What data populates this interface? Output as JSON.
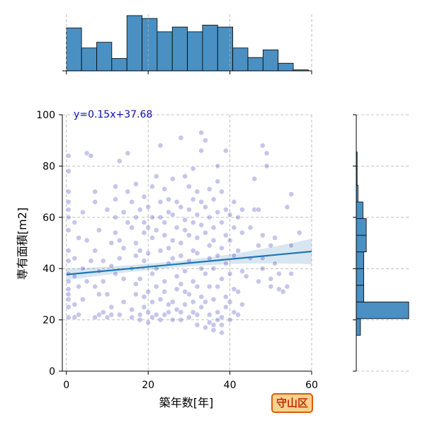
{
  "chart_data": {
    "type": "scatter",
    "title": "",
    "xlabel": "築年数[年]",
    "ylabel": "専有面積[m2]",
    "xlim": [
      -1,
      60
    ],
    "ylim": [
      0,
      100
    ],
    "xticks": [
      0,
      20,
      40,
      60
    ],
    "yticks": [
      0,
      20,
      40,
      60,
      80,
      100
    ],
    "grid": "dashed",
    "fit": {
      "slope": 0.15,
      "intercept": 37.68,
      "label": "y=0.15x+37.68",
      "line_color": "#1f77b4"
    },
    "point_color": "#1a1ab0",
    "marginal_x_hist": {
      "bin_edges": [
        0,
        3.7,
        7.4,
        11.1,
        14.8,
        18.5,
        22.2,
        25.9,
        29.6,
        33.3,
        37,
        40.7,
        44.4,
        48.1,
        51.8,
        55.5,
        59.2
      ],
      "counts": [
        45,
        24,
        30,
        13,
        58,
        55,
        41,
        46,
        41,
        48,
        46,
        24,
        14,
        22,
        8,
        1
      ]
    },
    "marginal_y_hist": {
      "bin_edges": [
        14,
        20.5,
        27,
        33.5,
        40,
        46.5,
        53,
        59.5,
        66,
        72.5,
        79,
        85.5
      ],
      "counts": [
        5,
        63,
        9,
        9,
        9,
        12,
        12,
        8,
        2,
        1,
        1
      ]
    },
    "points": [
      [
        0.5,
        21
      ],
      [
        0.5,
        25
      ],
      [
        0.5,
        28
      ],
      [
        0.5,
        30
      ],
      [
        0.5,
        32
      ],
      [
        0.5,
        35
      ],
      [
        0.5,
        38
      ],
      [
        0.5,
        43
      ],
      [
        0.5,
        47
      ],
      [
        0.5,
        55
      ],
      [
        0.5,
        60
      ],
      [
        0.5,
        63
      ],
      [
        0.5,
        66
      ],
      [
        0.5,
        70
      ],
      [
        0.5,
        78
      ],
      [
        0.5,
        84
      ],
      [
        2,
        21
      ],
      [
        3,
        22
      ],
      [
        2,
        26
      ],
      [
        4,
        28
      ],
      [
        3,
        33
      ],
      [
        2,
        37
      ],
      [
        4,
        40
      ],
      [
        2,
        44
      ],
      [
        3,
        52
      ],
      [
        2,
        58
      ],
      [
        4,
        62
      ],
      [
        5,
        85
      ],
      [
        6,
        84
      ],
      [
        5,
        35
      ],
      [
        6,
        43
      ],
      [
        5,
        51
      ],
      [
        7,
        21
      ],
      [
        8,
        22
      ],
      [
        8,
        30
      ],
      [
        7,
        33
      ],
      [
        8,
        39
      ],
      [
        7,
        47
      ],
      [
        8,
        55
      ],
      [
        7,
        66
      ],
      [
        7,
        70
      ],
      [
        9,
        23
      ],
      [
        9,
        35
      ],
      [
        9,
        43
      ],
      [
        10,
        21
      ],
      [
        11,
        22
      ],
      [
        11,
        25
      ],
      [
        10,
        30
      ],
      [
        11,
        41
      ],
      [
        12,
        38
      ],
      [
        11,
        50
      ],
      [
        12,
        54
      ],
      [
        12,
        60
      ],
      [
        12,
        67
      ],
      [
        12,
        72
      ],
      [
        10,
        63
      ],
      [
        13,
        22
      ],
      [
        14,
        27
      ],
      [
        14,
        36
      ],
      [
        13,
        44
      ],
      [
        14,
        48
      ],
      [
        15,
        58
      ],
      [
        14,
        62
      ],
      [
        13,
        82
      ],
      [
        15,
        85
      ],
      [
        15,
        70
      ],
      [
        13,
        51
      ],
      [
        16,
        21
      ],
      [
        16,
        24
      ],
      [
        17,
        30
      ],
      [
        17,
        34
      ],
      [
        16,
        40
      ],
      [
        17,
        45
      ],
      [
        17,
        50
      ],
      [
        16,
        56
      ],
      [
        17,
        60
      ],
      [
        16,
        66
      ],
      [
        17,
        73
      ],
      [
        18,
        20
      ],
      [
        18,
        22
      ],
      [
        19,
        25
      ],
      [
        19,
        29
      ],
      [
        18,
        36
      ],
      [
        19,
        43
      ],
      [
        18,
        47
      ],
      [
        19,
        54
      ],
      [
        19,
        58
      ],
      [
        18,
        63
      ],
      [
        19,
        68
      ],
      [
        20,
        19
      ],
      [
        20,
        23
      ],
      [
        21,
        21
      ],
      [
        21,
        27
      ],
      [
        20,
        31
      ],
      [
        21,
        38
      ],
      [
        20,
        46
      ],
      [
        21,
        52
      ],
      [
        20,
        56
      ],
      [
        21,
        60
      ],
      [
        20,
        64
      ],
      [
        21,
        72
      ],
      [
        22,
        22
      ],
      [
        23,
        20
      ],
      [
        23,
        28
      ],
      [
        22,
        33
      ],
      [
        22,
        40
      ],
      [
        23,
        47
      ],
      [
        22,
        55
      ],
      [
        23,
        60
      ],
      [
        23,
        66
      ],
      [
        22,
        76
      ],
      [
        23,
        88
      ],
      [
        24,
        22
      ],
      [
        25,
        23
      ],
      [
        25,
        26
      ],
      [
        24,
        31
      ],
      [
        24,
        35
      ],
      [
        25,
        42
      ],
      [
        25,
        48
      ],
      [
        24,
        53
      ],
      [
        24,
        58
      ],
      [
        25,
        62
      ],
      [
        25,
        67
      ],
      [
        24,
        71
      ],
      [
        26,
        20
      ],
      [
        27,
        24
      ],
      [
        26,
        27
      ],
      [
        27,
        32
      ],
      [
        27,
        37
      ],
      [
        26,
        44
      ],
      [
        26,
        51
      ],
      [
        27,
        56
      ],
      [
        26,
        61
      ],
      [
        27,
        66
      ],
      [
        26,
        75
      ],
      [
        28,
        20
      ],
      [
        28,
        23
      ],
      [
        29,
        26
      ],
      [
        29,
        31
      ],
      [
        28,
        34
      ],
      [
        29,
        39
      ],
      [
        28,
        45
      ],
      [
        28,
        50
      ],
      [
        29,
        55
      ],
      [
        29,
        59
      ],
      [
        28,
        64
      ],
      [
        29,
        76
      ],
      [
        28,
        91
      ],
      [
        30,
        21
      ],
      [
        31,
        23
      ],
      [
        31,
        27
      ],
      [
        30,
        30
      ],
      [
        31,
        35
      ],
      [
        30,
        43
      ],
      [
        31,
        47
      ],
      [
        30,
        53
      ],
      [
        31,
        58
      ],
      [
        30,
        63
      ],
      [
        31,
        67
      ],
      [
        30,
        72
      ],
      [
        31,
        79
      ],
      [
        32,
        18
      ],
      [
        32,
        22
      ],
      [
        33,
        25
      ],
      [
        33,
        29
      ],
      [
        32,
        33
      ],
      [
        33,
        40
      ],
      [
        32,
        46
      ],
      [
        32,
        52
      ],
      [
        33,
        57
      ],
      [
        32,
        61
      ],
      [
        33,
        66
      ],
      [
        32,
        70
      ],
      [
        33,
        86
      ],
      [
        33,
        93
      ],
      [
        34,
        17
      ],
      [
        35,
        19
      ],
      [
        35,
        22
      ],
      [
        34,
        27
      ],
      [
        35,
        33
      ],
      [
        34,
        38
      ],
      [
        35,
        44
      ],
      [
        35,
        49
      ],
      [
        34,
        54
      ],
      [
        35,
        60
      ],
      [
        34,
        64
      ],
      [
        35,
        71
      ],
      [
        34,
        90
      ],
      [
        36,
        16
      ],
      [
        36,
        18
      ],
      [
        37,
        20
      ],
      [
        37,
        23
      ],
      [
        36,
        28
      ],
      [
        37,
        33
      ],
      [
        36,
        40
      ],
      [
        37,
        45
      ],
      [
        36,
        51
      ],
      [
        36,
        56
      ],
      [
        37,
        62
      ],
      [
        36,
        67
      ],
      [
        37,
        74
      ],
      [
        37,
        80
      ],
      [
        38,
        15
      ],
      [
        38,
        18
      ],
      [
        38,
        21
      ],
      [
        39,
        25
      ],
      [
        39,
        29
      ],
      [
        38,
        36
      ],
      [
        39,
        42
      ],
      [
        38,
        48
      ],
      [
        39,
        53
      ],
      [
        38,
        58
      ],
      [
        39,
        63
      ],
      [
        38,
        70
      ],
      [
        39,
        86
      ],
      [
        40,
        20
      ],
      [
        41,
        23
      ],
      [
        40,
        27
      ],
      [
        41,
        32
      ],
      [
        40,
        38
      ],
      [
        41,
        45
      ],
      [
        40,
        51
      ],
      [
        41,
        56
      ],
      [
        40,
        61
      ],
      [
        41,
        66
      ],
      [
        42,
        22
      ],
      [
        43,
        26
      ],
      [
        42,
        31
      ],
      [
        43,
        39
      ],
      [
        42,
        47
      ],
      [
        43,
        54
      ],
      [
        42,
        60
      ],
      [
        43,
        63
      ],
      [
        44,
        37
      ],
      [
        45,
        44
      ],
      [
        45,
        56
      ],
      [
        46,
        63
      ],
      [
        46,
        75
      ],
      [
        47,
        35
      ],
      [
        48,
        40
      ],
      [
        48,
        44
      ],
      [
        47,
        49
      ],
      [
        48,
        53
      ],
      [
        47,
        63
      ],
      [
        48,
        88
      ],
      [
        49,
        80
      ],
      [
        49,
        85
      ],
      [
        50,
        33
      ],
      [
        50,
        36
      ],
      [
        51,
        42
      ],
      [
        50,
        49
      ],
      [
        51,
        52
      ],
      [
        52,
        32
      ],
      [
        52,
        38
      ],
      [
        53,
        31
      ],
      [
        54,
        33
      ],
      [
        55,
        38
      ],
      [
        55,
        49
      ],
      [
        54,
        64
      ],
      [
        55,
        69
      ],
      [
        57,
        54
      ]
    ]
  }
}
